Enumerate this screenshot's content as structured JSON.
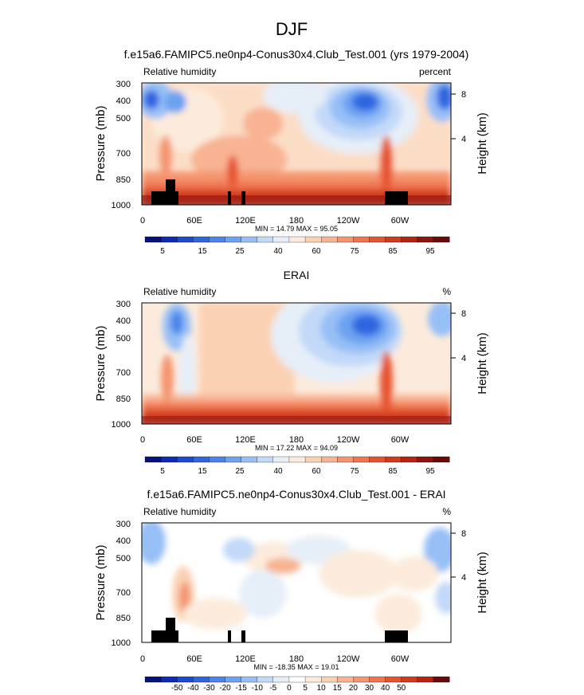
{
  "figure": {
    "title": "DJF"
  },
  "colors": {
    "rh_palette": [
      "#08137a",
      "#0c2bb6",
      "#1b49d2",
      "#2f66e0",
      "#4a84ea",
      "#6da2f1",
      "#97bff6",
      "#c2d9f8",
      "#e6eef8",
      "#fcebdc",
      "#fbd1b4",
      "#f8b392",
      "#f49470",
      "#ef744f",
      "#e6532f",
      "#d33a1d",
      "#b72414",
      "#8e1410",
      "#6a0a0a"
    ],
    "diff_palette": [
      "#08137a",
      "#0c2bb6",
      "#1b49d2",
      "#2f66e0",
      "#4a84ea",
      "#6da2f1",
      "#97bff6",
      "#c2d9f8",
      "#e6eef8",
      "#ffffff",
      "#fcebdc",
      "#fbd1b4",
      "#f8b392",
      "#f49470",
      "#ef744f",
      "#e6532f",
      "#d33a1d",
      "#b72414",
      "#6a0a0a"
    ],
    "terrain": "#000000"
  },
  "chart_data": [
    {
      "type": "heatmap",
      "title": "f.e15a6.FAMIPC5.ne0np4-Conus30x4.Club_Test.001 (yrs 1979-2004)",
      "left_string": "Relative humidity",
      "right_string": "percent",
      "ylabel": "Pressure (mb)",
      "ylabel_right": "Height (km)",
      "yticks": [
        "300",
        "400",
        "500",
        "700",
        "850",
        "1000"
      ],
      "yticks_right": [
        "8",
        "4"
      ],
      "xticks": [
        "0",
        "60E",
        "120E",
        "180",
        "120W",
        "60W"
      ],
      "stats": "MIN = 14.79  MAX = 95.05",
      "colorbar_labels": [
        "5",
        "15",
        "25",
        "40",
        "60",
        "75",
        "85",
        "95"
      ],
      "ylim": [
        1000,
        300
      ],
      "xlim": [
        0,
        360
      ]
    },
    {
      "type": "heatmap",
      "title": "ERAI",
      "left_string": "Relative humidity",
      "right_string": "%",
      "ylabel": "Pressure (mb)",
      "ylabel_right": "Height (km)",
      "yticks": [
        "300",
        "400",
        "500",
        "700",
        "850",
        "1000"
      ],
      "yticks_right": [
        "8",
        "4"
      ],
      "xticks": [
        "0",
        "60E",
        "120E",
        "180",
        "120W",
        "60W"
      ],
      "stats": "MIN = 17.22  MAX = 94.09",
      "colorbar_labels": [
        "5",
        "15",
        "25",
        "40",
        "60",
        "75",
        "85",
        "95"
      ],
      "ylim": [
        1000,
        300
      ],
      "xlim": [
        0,
        360
      ]
    },
    {
      "type": "heatmap",
      "title": "f.e15a6.FAMIPC5.ne0np4-Conus30x4.Club_Test.001 - ERAI",
      "left_string": "Relative humidity",
      "right_string": "%",
      "ylabel": "Pressure (mb)",
      "ylabel_right": "Height (km)",
      "yticks": [
        "300",
        "400",
        "500",
        "700",
        "850",
        "1000"
      ],
      "yticks_right": [
        "8",
        "4"
      ],
      "xticks": [
        "0",
        "60E",
        "120E",
        "180",
        "120W",
        "60W"
      ],
      "stats": "MIN = -18.35  MAX = 19.01",
      "colorbar_labels": [
        "-50",
        "-40",
        "-30",
        "-20",
        "-15",
        "-10",
        "-5",
        "0",
        "5",
        "10",
        "15",
        "20",
        "30",
        "40",
        "50"
      ],
      "ylim": [
        1000,
        300
      ],
      "xlim": [
        0,
        360
      ]
    }
  ]
}
